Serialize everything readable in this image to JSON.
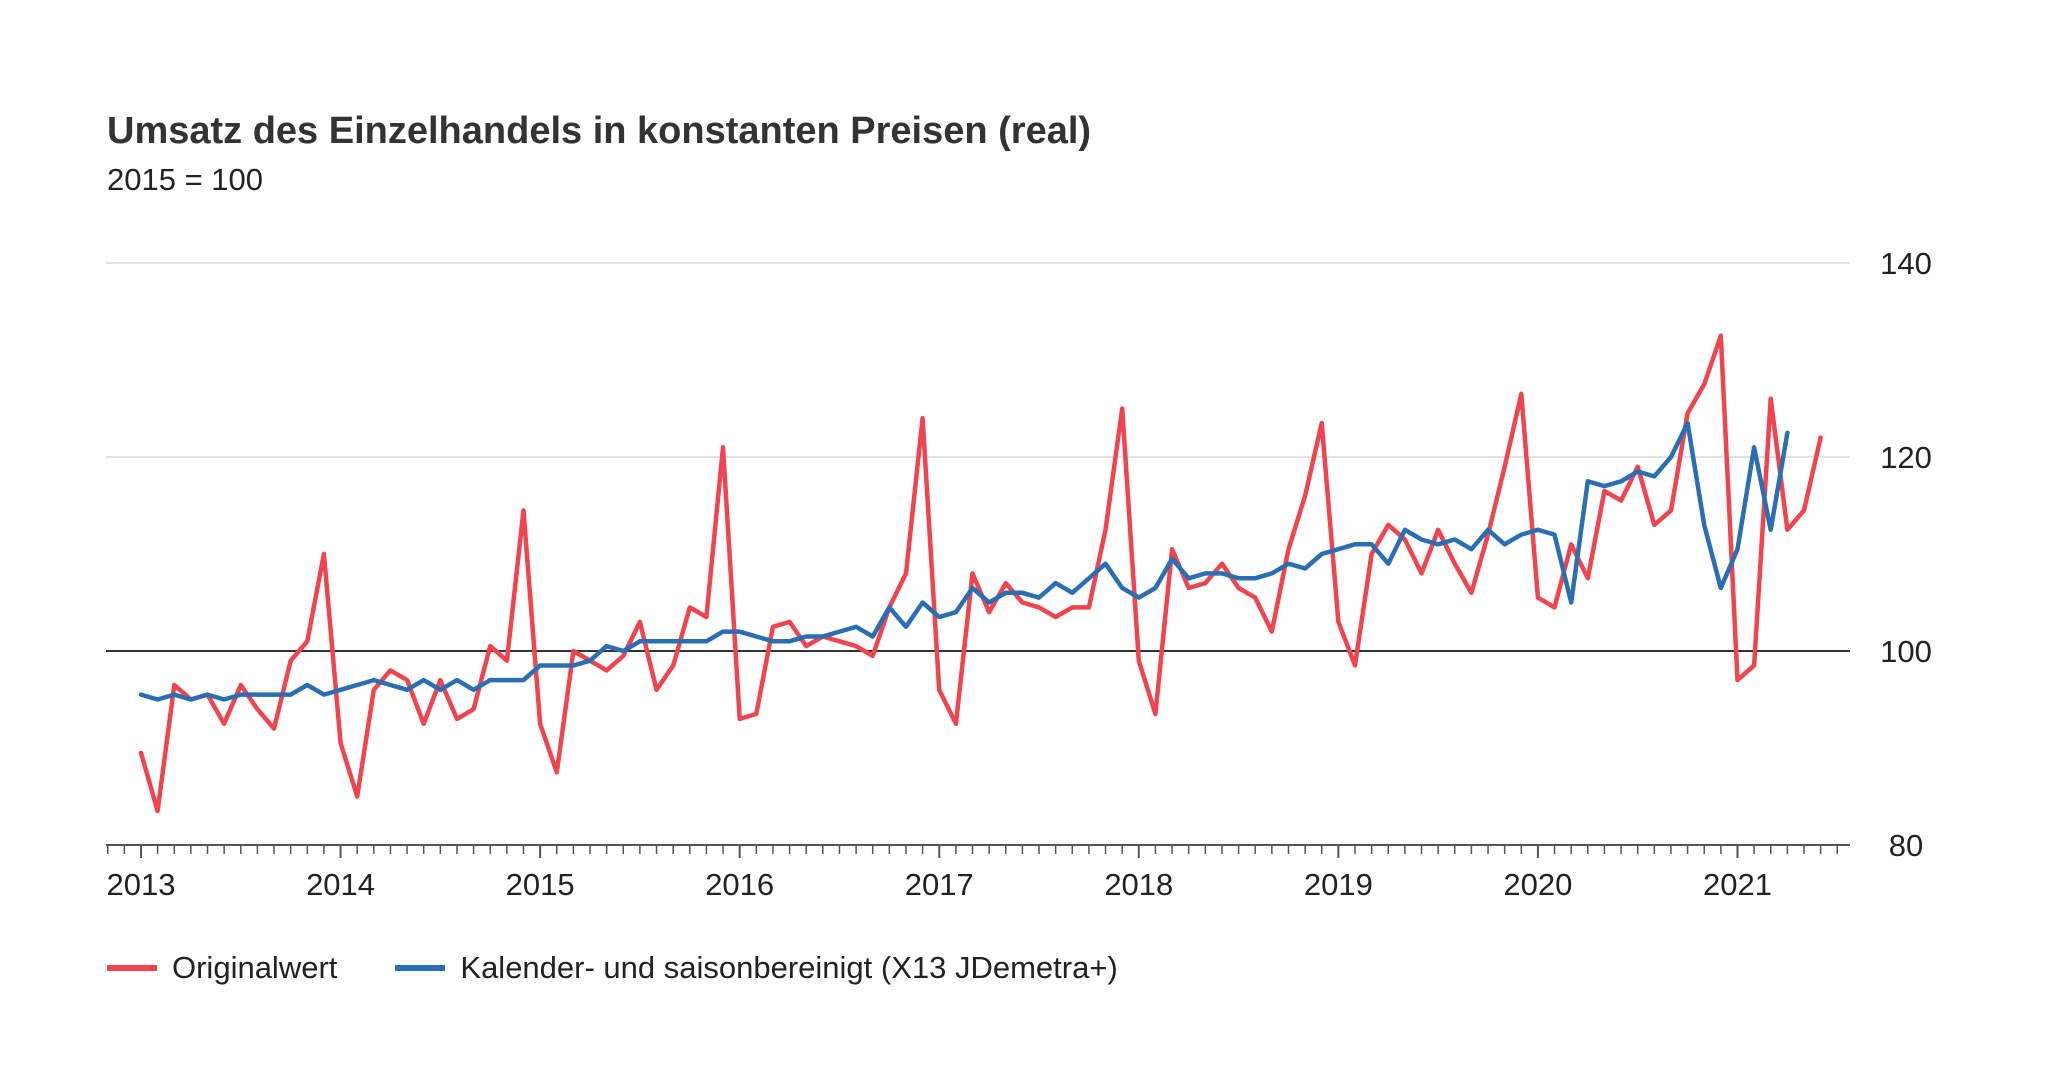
{
  "chart_data": {
    "type": "line",
    "title": "Umsatz des Einzelhandels in konstanten Preisen (real)",
    "subtitle": "2015 = 100",
    "xlabel": "",
    "ylabel": "",
    "x_start": "2013-01",
    "x_ticks": [
      "2013",
      "2014",
      "2015",
      "2016",
      "2017",
      "2018",
      "2019",
      "2020",
      "2021"
    ],
    "y_ticks": [
      "80",
      "100",
      "120",
      "140"
    ],
    "ylim": [
      80,
      140
    ],
    "reference_line": 100,
    "grid": true,
    "y_axis_position": "right",
    "legend_position": "bottom-left",
    "series": [
      {
        "name": "Originalwert",
        "color": "#f0444f",
        "values": [
          89.5,
          83.5,
          96.5,
          95,
          95.5,
          92.5,
          96.5,
          94,
          92,
          99,
          101,
          110,
          90.5,
          85,
          96,
          98,
          97,
          92.5,
          97,
          93,
          94,
          100.5,
          99,
          114.5,
          92.5,
          87.5,
          100,
          99,
          98,
          99.5,
          103,
          96,
          98.5,
          104.5,
          103.5,
          121,
          93,
          93.5,
          102.5,
          103,
          100.5,
          101.5,
          101,
          100.5,
          99.5,
          104.5,
          108,
          124,
          96,
          92.5,
          108,
          104,
          107,
          105,
          104.5,
          103.5,
          104.5,
          104.5,
          112.5,
          125,
          99,
          93.5,
          110.5,
          106.5,
          107,
          109,
          106.5,
          105.5,
          102,
          110.5,
          116,
          123.5,
          103,
          98.5,
          110,
          113,
          111.5,
          108,
          112.5,
          109,
          106,
          112,
          119,
          126.5,
          105.5,
          104.5,
          111,
          107.5,
          116.5,
          115.5,
          119,
          113,
          114.5,
          124.5,
          127.5,
          132.5,
          97,
          98.5,
          126,
          112.5,
          114.5,
          122
        ]
      },
      {
        "name": "Kalender- und saisonbereinigt (X13 JDemetra+)",
        "color": "#2a6eb3",
        "values": [
          95.5,
          95,
          95.5,
          95,
          95.5,
          95,
          95.5,
          95.5,
          95.5,
          95.5,
          96.5,
          95.5,
          96,
          96.5,
          97,
          96.5,
          96,
          97,
          96,
          97,
          96,
          97,
          97,
          97,
          98.5,
          98.5,
          98.5,
          99,
          100.5,
          100,
          101,
          101,
          101,
          101,
          101,
          102,
          102,
          101.5,
          101,
          101,
          101.5,
          101.5,
          102,
          102.5,
          101.5,
          104.5,
          102.5,
          105,
          103.5,
          104,
          106.5,
          105,
          106,
          106,
          105.5,
          107,
          106,
          107.5,
          109,
          106.5,
          105.5,
          106.5,
          109.5,
          107.5,
          108,
          108,
          107.5,
          107.5,
          108,
          109,
          108.5,
          110,
          110.5,
          111,
          111,
          109,
          112.5,
          111.5,
          111,
          111.5,
          110.5,
          112.5,
          111,
          112,
          112.5,
          112,
          105,
          117.5,
          117,
          117.5,
          118.5,
          118,
          120,
          123.5,
          113,
          106.5,
          110.5,
          121,
          112.5,
          122.5
        ]
      }
    ]
  }
}
